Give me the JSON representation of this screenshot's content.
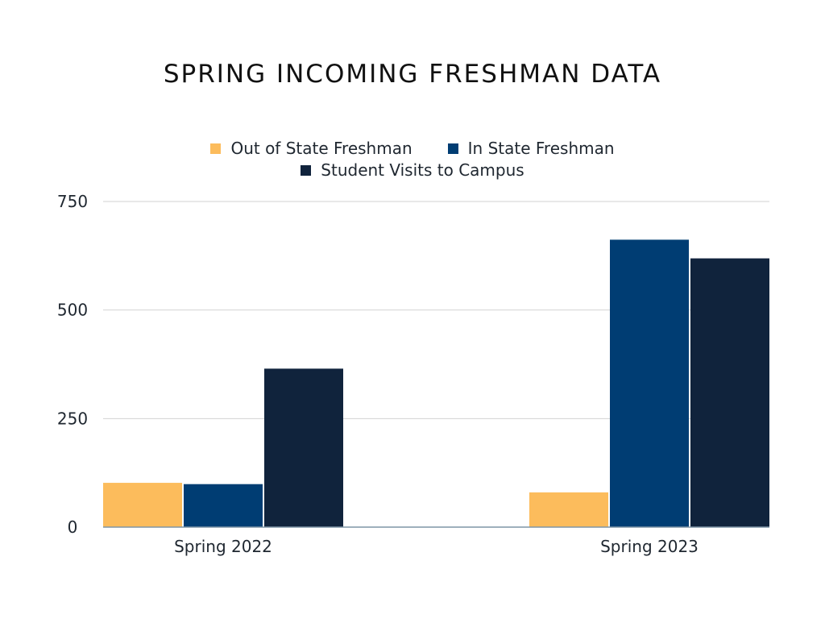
{
  "chart_data": {
    "type": "bar",
    "title": "SPRING INCOMING FRESHMAN DATA",
    "categories": [
      "Spring 2022",
      "Spring 2023"
    ],
    "series": [
      {
        "name": "Out of State Freshman",
        "values": [
          102,
          80
        ],
        "color": "#fcbc5c"
      },
      {
        "name": "In State Freshman",
        "values": [
          99,
          662
        ],
        "color": "#003d73"
      },
      {
        "name": "Student Visits to Campus",
        "values": [
          365,
          619
        ],
        "color": "#10233c"
      }
    ],
    "yticks": [
      "0",
      "250",
      "500",
      "750"
    ],
    "ylim": [
      0,
      750
    ],
    "xlabel": "",
    "ylabel": "",
    "grid": true,
    "legend_position": "top-center"
  }
}
